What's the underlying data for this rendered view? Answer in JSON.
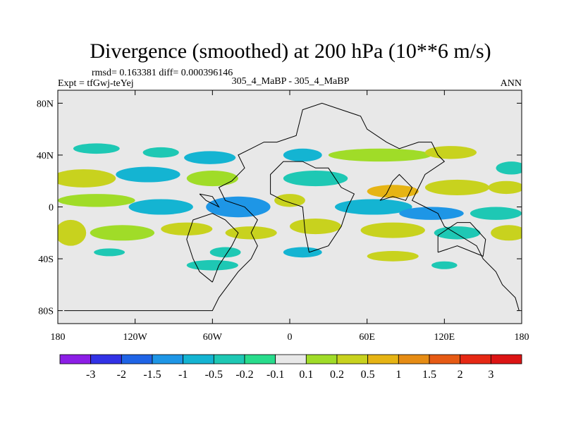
{
  "chart_data": {
    "type": "heatmap",
    "title": "Divergence (smoothed) at 200 hPa (10**6 m/s)",
    "stats_line": "rmsd= 0.163381 diff= 0.000396146",
    "expt_line": "Expt = tfGwj-teYej",
    "comparison_line": "305_4_MaBP - 305_4_MaBP",
    "season": "ANN",
    "x_ticks": [
      "180",
      "120W",
      "60W",
      "0",
      "60E",
      "120E",
      "180"
    ],
    "y_ticks": [
      "80N",
      "40N",
      "0",
      "40S",
      "80S"
    ],
    "xlim": [
      -180,
      180
    ],
    "ylim": [
      -90,
      90
    ],
    "colorbar": {
      "labels": [
        "-3",
        "-2",
        "-1.5",
        "-1",
        "-0.5",
        "-0.2",
        "-0.1",
        "0.1",
        "0.2",
        "0.5",
        "1",
        "1.5",
        "2",
        "3"
      ],
      "colors": [
        "#8c1ee6",
        "#3232e6",
        "#1f64e6",
        "#1e96e6",
        "#14b4d2",
        "#1ec8b4",
        "#28dc8c",
        "#e8e8e8",
        "#a0dc28",
        "#c8d21e",
        "#e6b414",
        "#e68c14",
        "#e65a14",
        "#e62814",
        "#dc1414"
      ]
    },
    "features": [
      {
        "shape": "blob",
        "lon": -150,
        "lat": 45,
        "rx": 18,
        "ry": 4,
        "level": 5
      },
      {
        "shape": "blob",
        "lon": -100,
        "lat": 42,
        "rx": 14,
        "ry": 4,
        "level": 5
      },
      {
        "shape": "blob",
        "lon": -62,
        "lat": 38,
        "rx": 20,
        "ry": 5,
        "level": 4
      },
      {
        "shape": "blob",
        "lon": 10,
        "lat": 40,
        "rx": 15,
        "ry": 5,
        "level": 4
      },
      {
        "shape": "blob",
        "lon": 70,
        "lat": 40,
        "rx": 40,
        "ry": 5,
        "level": 8
      },
      {
        "shape": "blob",
        "lon": 125,
        "lat": 42,
        "rx": 20,
        "ry": 5,
        "level": 9
      },
      {
        "shape": "blob",
        "lon": 172,
        "lat": 30,
        "rx": 12,
        "ry": 5,
        "level": 5
      },
      {
        "shape": "blob",
        "lon": -160,
        "lat": 22,
        "rx": 25,
        "ry": 7,
        "level": 9
      },
      {
        "shape": "blob",
        "lon": -110,
        "lat": 25,
        "rx": 25,
        "ry": 6,
        "level": 4
      },
      {
        "shape": "blob",
        "lon": -60,
        "lat": 22,
        "rx": 20,
        "ry": 6,
        "level": 8
      },
      {
        "shape": "blob",
        "lon": 20,
        "lat": 22,
        "rx": 25,
        "ry": 6,
        "level": 5
      },
      {
        "shape": "blob",
        "lon": 80,
        "lat": 12,
        "rx": 20,
        "ry": 5,
        "level": 10
      },
      {
        "shape": "blob",
        "lon": 130,
        "lat": 15,
        "rx": 25,
        "ry": 6,
        "level": 9
      },
      {
        "shape": "blob",
        "lon": 168,
        "lat": 15,
        "rx": 14,
        "ry": 5,
        "level": 9
      },
      {
        "shape": "blob",
        "lon": -150,
        "lat": 5,
        "rx": 30,
        "ry": 5,
        "level": 8
      },
      {
        "shape": "blob",
        "lon": -100,
        "lat": 0,
        "rx": 25,
        "ry": 6,
        "level": 4
      },
      {
        "shape": "blob",
        "lon": -40,
        "lat": 0,
        "rx": 25,
        "ry": 8,
        "level": 3
      },
      {
        "shape": "blob",
        "lon": 0,
        "lat": 5,
        "rx": 12,
        "ry": 5,
        "level": 9
      },
      {
        "shape": "blob",
        "lon": 65,
        "lat": 0,
        "rx": 30,
        "ry": 6,
        "level": 4
      },
      {
        "shape": "blob",
        "lon": 110,
        "lat": -5,
        "rx": 25,
        "ry": 5,
        "level": 3
      },
      {
        "shape": "blob",
        "lon": 160,
        "lat": -5,
        "rx": 20,
        "ry": 5,
        "level": 5
      },
      {
        "shape": "blob",
        "lon": -170,
        "lat": -20,
        "rx": 12,
        "ry": 10,
        "level": 9
      },
      {
        "shape": "blob",
        "lon": -130,
        "lat": -20,
        "rx": 25,
        "ry": 6,
        "level": 8
      },
      {
        "shape": "blob",
        "lon": -80,
        "lat": -17,
        "rx": 20,
        "ry": 5,
        "level": 9
      },
      {
        "shape": "blob",
        "lon": -30,
        "lat": -20,
        "rx": 20,
        "ry": 5,
        "level": 9
      },
      {
        "shape": "blob",
        "lon": 20,
        "lat": -15,
        "rx": 20,
        "ry": 6,
        "level": 9
      },
      {
        "shape": "blob",
        "lon": 80,
        "lat": -18,
        "rx": 25,
        "ry": 6,
        "level": 9
      },
      {
        "shape": "blob",
        "lon": 130,
        "lat": -20,
        "rx": 18,
        "ry": 5,
        "level": 5
      },
      {
        "shape": "blob",
        "lon": 170,
        "lat": -20,
        "rx": 14,
        "ry": 6,
        "level": 9
      },
      {
        "shape": "blob",
        "lon": -140,
        "lat": -35,
        "rx": 12,
        "ry": 3,
        "level": 5
      },
      {
        "shape": "blob",
        "lon": -50,
        "lat": -35,
        "rx": 12,
        "ry": 4,
        "level": 5
      },
      {
        "shape": "blob",
        "lon": 10,
        "lat": -35,
        "rx": 15,
        "ry": 4,
        "level": 4
      },
      {
        "shape": "blob",
        "lon": 80,
        "lat": -38,
        "rx": 20,
        "ry": 4,
        "level": 9
      },
      {
        "shape": "blob",
        "lon": -60,
        "lat": -45,
        "rx": 20,
        "ry": 4,
        "level": 5
      },
      {
        "shape": "blob",
        "lon": 120,
        "lat": -45,
        "rx": 10,
        "ry": 3,
        "level": 5
      }
    ],
    "land_outline": [
      [
        [
          -175,
          -80
        ],
        [
          -60,
          -80
        ],
        [
          -55,
          -70
        ],
        [
          -40,
          -50
        ],
        [
          -30,
          -40
        ],
        [
          -25,
          -30
        ],
        [
          -30,
          -20
        ],
        [
          -25,
          -10
        ],
        [
          -35,
          0
        ],
        [
          -50,
          5
        ],
        [
          -55,
          15
        ],
        [
          -45,
          20
        ],
        [
          -35,
          30
        ],
        [
          -40,
          40
        ],
        [
          -30,
          45
        ],
        [
          -20,
          50
        ],
        [
          -10,
          50
        ],
        [
          5,
          55
        ],
        [
          10,
          75
        ],
        [
          25,
          80
        ],
        [
          40,
          75
        ],
        [
          55,
          70
        ],
        [
          60,
          60
        ],
        [
          75,
          50
        ],
        [
          85,
          45
        ],
        [
          100,
          50
        ],
        [
          110,
          50
        ],
        [
          115,
          40
        ],
        [
          120,
          35
        ],
        [
          105,
          25
        ],
        [
          100,
          15
        ],
        [
          95,
          5
        ],
        [
          105,
          0
        ],
        [
          115,
          -5
        ],
        [
          120,
          -15
        ],
        [
          145,
          -30
        ],
        [
          150,
          -40
        ],
        [
          160,
          -50
        ],
        [
          165,
          -60
        ],
        [
          175,
          -70
        ],
        [
          178,
          -80
        ]
      ],
      [
        [
          -60,
          -58
        ],
        [
          -70,
          -50
        ],
        [
          -75,
          -40
        ],
        [
          -80,
          -25
        ],
        [
          -75,
          -10
        ],
        [
          -60,
          -5
        ],
        [
          -50,
          -10
        ],
        [
          -40,
          -20
        ],
        [
          -45,
          -30
        ],
        [
          -55,
          -45
        ],
        [
          -60,
          -58
        ]
      ],
      [
        [
          15,
          -35
        ],
        [
          30,
          -30
        ],
        [
          40,
          -15
        ],
        [
          45,
          0
        ],
        [
          50,
          10
        ],
        [
          40,
          15
        ],
        [
          30,
          30
        ],
        [
          20,
          30
        ],
        [
          10,
          35
        ],
        [
          -5,
          35
        ],
        [
          -15,
          25
        ],
        [
          -15,
          10
        ],
        [
          -5,
          5
        ],
        [
          10,
          0
        ],
        [
          12,
          -20
        ],
        [
          15,
          -35
        ]
      ],
      [
        [
          115,
          -35
        ],
        [
          130,
          -30
        ],
        [
          150,
          -38
        ],
        [
          152,
          -25
        ],
        [
          140,
          -12
        ],
        [
          130,
          -12
        ],
        [
          115,
          -22
        ],
        [
          115,
          -35
        ]
      ],
      [
        [
          -70,
          10
        ],
        [
          -60,
          8
        ],
        [
          -55,
          0
        ],
        [
          -65,
          5
        ],
        [
          -70,
          10
        ]
      ],
      [
        [
          70,
          5
        ],
        [
          75,
          10
        ],
        [
          80,
          20
        ],
        [
          85,
          25
        ],
        [
          90,
          20
        ],
        [
          95,
          15
        ],
        [
          90,
          5
        ],
        [
          80,
          8
        ],
        [
          70,
          5
        ]
      ]
    ]
  }
}
